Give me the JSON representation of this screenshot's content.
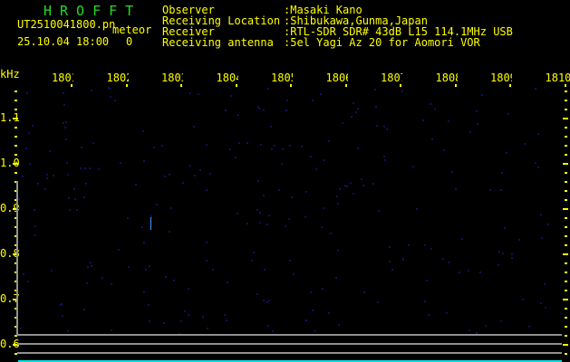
{
  "header": {
    "title": "HROFFT",
    "filename": "UT2510041800.pn",
    "meteor_label": "meteor",
    "datetime": "25.10.04 18:00",
    "meteor_count": "0",
    "info": [
      {
        "label": "Observer",
        "value": ":Masaki Kano"
      },
      {
        "label": "Receiving Location",
        "value": ":Shibukawa,Gunma,Japan"
      },
      {
        "label": "Receiver",
        "value": ":RTL-SDR SDR# 43dB L15 114.1MHz USB"
      },
      {
        "label": "Receiving antenna",
        "value": ":5el Yagi Az 20 for Aomori VOR"
      }
    ]
  },
  "axes": {
    "y_unit": "kHz",
    "x_labels": [
      "1801",
      "1802",
      "1803",
      "1804",
      "1805",
      "1806",
      "1807",
      "1808",
      "1809",
      "1810"
    ],
    "y_labels": [
      "1.1",
      "1.0",
      "0.9",
      "0.8",
      "0.7",
      "0.6"
    ]
  },
  "colors": {
    "text": "#ffff00",
    "title": "#22dd22",
    "grid": "#909090",
    "baseline": "#00e0e0"
  }
}
